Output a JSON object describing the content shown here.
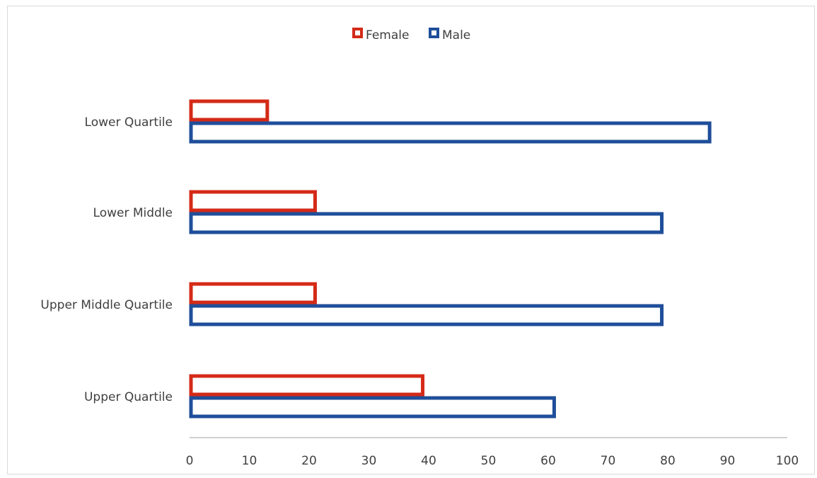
{
  "chart_data": {
    "type": "bar",
    "orientation": "horizontal",
    "categories": [
      "Lower Quartile",
      "Lower Middle",
      "Upper Middle Quartile",
      "Upper Quartile"
    ],
    "series": [
      {
        "name": "Female",
        "values": [
          13,
          21,
          21,
          39
        ],
        "color": "#d42a17"
      },
      {
        "name": "Male",
        "values": [
          87,
          79,
          79,
          61
        ],
        "color": "#1f4e9a"
      }
    ],
    "x_ticks": [
      "0",
      "10",
      "20",
      "30",
      "40",
      "50",
      "60",
      "70",
      "80",
      "90",
      "100"
    ],
    "xlim": [
      0,
      100
    ],
    "grid": false,
    "legend_position": "top"
  }
}
